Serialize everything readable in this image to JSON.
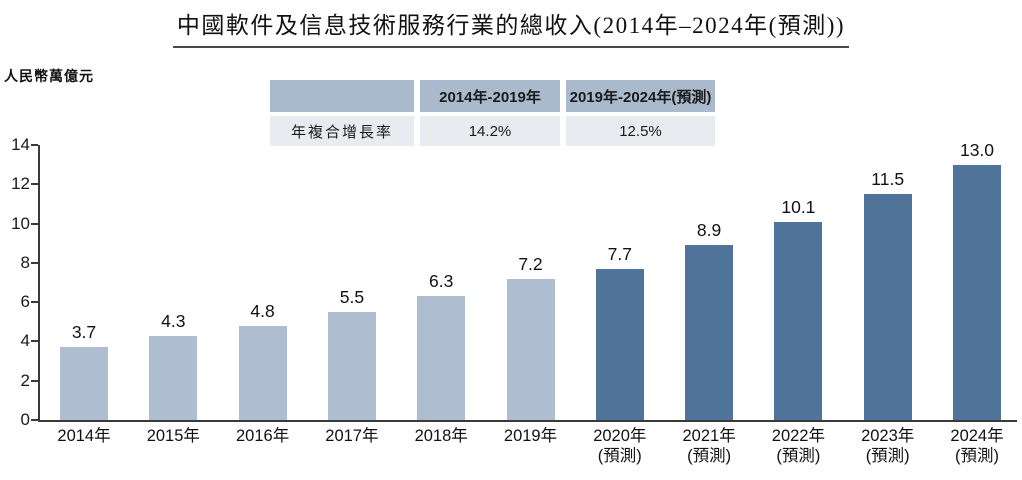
{
  "title": "中國軟件及信息技術服務行業的總收入(2014年–2024年(預測))",
  "y_axis_unit": "人民幣萬億元",
  "cagr_table": {
    "header": [
      "",
      "2014年-2019年",
      "2019年-2024年(預測)"
    ],
    "row_label": "年複合增長率",
    "values": [
      "14.2%",
      "12.5%"
    ]
  },
  "chart_data": {
    "type": "bar",
    "categories": [
      "2014年",
      "2015年",
      "2016年",
      "2017年",
      "2018年",
      "2019年",
      "2020年",
      "2021年",
      "2022年",
      "2023年",
      "2024年"
    ],
    "category_sublabels": [
      "",
      "",
      "",
      "",
      "",
      "",
      "(預測)",
      "(預測)",
      "(預測)",
      "(預測)",
      "(預測)"
    ],
    "values": [
      3.7,
      4.3,
      4.8,
      5.5,
      6.3,
      7.2,
      7.7,
      8.9,
      10.1,
      11.5,
      13.0
    ],
    "forecast_from_index": 6,
    "ylabel": "人民幣萬億元",
    "ylim": [
      0,
      14
    ],
    "yticks": [
      0,
      2,
      4,
      6,
      8,
      10,
      12,
      14
    ],
    "grid": false,
    "legend": "none",
    "colors": {
      "historical_bar": "#aebdd0",
      "forecast_bar": "#4f7399",
      "axis": "#3a3a3a",
      "table_header_bg": "#a9bacc",
      "table_row_bg": "#e8ebf0"
    }
  }
}
